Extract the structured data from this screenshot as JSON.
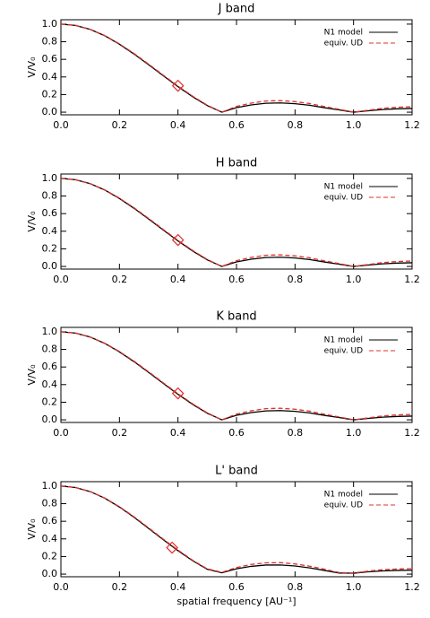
{
  "chart_data": [
    {
      "type": "line",
      "title": "J band",
      "ylabel": "V/V₀",
      "x": [
        0,
        0.05,
        0.1,
        0.15,
        0.2,
        0.25,
        0.3,
        0.35,
        0.4,
        0.45,
        0.5,
        0.55,
        0.6,
        0.65,
        0.7,
        0.75,
        0.8,
        0.85,
        0.9,
        0.95,
        1.0,
        1.05,
        1.1,
        1.15,
        1.2
      ],
      "series": [
        {
          "name": "N1 model",
          "color": "#000000",
          "style": "solid",
          "values": [
            1,
            0.985,
            0.94,
            0.868,
            0.772,
            0.66,
            0.538,
            0.413,
            0.29,
            0.176,
            0.075,
            0,
            0.052,
            0.082,
            0.101,
            0.105,
            0.096,
            0.078,
            0.051,
            0.026,
            0,
            0.016,
            0.03,
            0.038,
            0.042
          ]
        },
        {
          "name": "equiv. UD",
          "color": "#e0302c",
          "style": "dashed",
          "values": [
            1,
            0.985,
            0.94,
            0.87,
            0.776,
            0.666,
            0.545,
            0.42,
            0.297,
            0.182,
            0.08,
            0,
            0.066,
            0.102,
            0.127,
            0.131,
            0.12,
            0.098,
            0.064,
            0.033,
            0,
            0.022,
            0.044,
            0.056,
            0.062
          ]
        }
      ],
      "marker": {
        "x": 0.4,
        "y": 0.3,
        "color": "#e0302c"
      },
      "xlim": [
        0,
        1.2
      ],
      "ylim": [
        -0.03,
        1.05
      ],
      "xticks": [
        {
          "value": 0,
          "label": "0.0"
        },
        {
          "value": 0.2,
          "label": "0.2"
        },
        {
          "value": 0.4,
          "label": "0.4"
        },
        {
          "value": 0.6,
          "label": "0.6"
        },
        {
          "value": 0.8,
          "label": "0.8"
        },
        {
          "value": 1,
          "label": "1.0"
        },
        {
          "value": 1.2,
          "label": "1.2"
        }
      ],
      "yticks": [
        {
          "value": 0,
          "label": "0.0"
        },
        {
          "value": 0.2,
          "label": "0.2"
        },
        {
          "value": 0.4,
          "label": "0.4"
        },
        {
          "value": 0.6,
          "label": "0.6"
        },
        {
          "value": 0.8,
          "label": "0.8"
        },
        {
          "value": 1,
          "label": "1.0"
        }
      ],
      "legend": "upper right"
    },
    {
      "type": "line",
      "title": "H band",
      "ylabel": "V/V₀",
      "x": [
        0,
        0.05,
        0.1,
        0.15,
        0.2,
        0.25,
        0.3,
        0.35,
        0.4,
        0.45,
        0.5,
        0.55,
        0.6,
        0.65,
        0.7,
        0.75,
        0.8,
        0.85,
        0.9,
        0.95,
        1.0,
        1.05,
        1.1,
        1.15,
        1.2
      ],
      "series": [
        {
          "name": "N1 model",
          "color": "#000000",
          "style": "solid",
          "values": [
            1,
            0.985,
            0.94,
            0.868,
            0.772,
            0.66,
            0.538,
            0.413,
            0.29,
            0.176,
            0.075,
            0,
            0.052,
            0.082,
            0.101,
            0.105,
            0.096,
            0.078,
            0.051,
            0.026,
            0,
            0.016,
            0.03,
            0.038,
            0.042
          ]
        },
        {
          "name": "equiv. UD",
          "color": "#e0302c",
          "style": "dashed",
          "values": [
            1,
            0.985,
            0.94,
            0.87,
            0.776,
            0.666,
            0.545,
            0.42,
            0.297,
            0.182,
            0.08,
            0,
            0.066,
            0.102,
            0.127,
            0.131,
            0.12,
            0.098,
            0.064,
            0.033,
            0,
            0.022,
            0.044,
            0.056,
            0.062
          ]
        }
      ],
      "marker": {
        "x": 0.4,
        "y": 0.3,
        "color": "#e0302c"
      },
      "xlim": [
        0,
        1.2
      ],
      "ylim": [
        -0.03,
        1.05
      ],
      "xticks": [
        {
          "value": 0,
          "label": "0.0"
        },
        {
          "value": 0.2,
          "label": "0.2"
        },
        {
          "value": 0.4,
          "label": "0.4"
        },
        {
          "value": 0.6,
          "label": "0.6"
        },
        {
          "value": 0.8,
          "label": "0.8"
        },
        {
          "value": 1,
          "label": "1.0"
        },
        {
          "value": 1.2,
          "label": "1.2"
        }
      ],
      "yticks": [
        {
          "value": 0,
          "label": "0.0"
        },
        {
          "value": 0.2,
          "label": "0.2"
        },
        {
          "value": 0.4,
          "label": "0.4"
        },
        {
          "value": 0.6,
          "label": "0.6"
        },
        {
          "value": 0.8,
          "label": "0.8"
        },
        {
          "value": 1,
          "label": "1.0"
        }
      ],
      "legend": "upper right"
    },
    {
      "type": "line",
      "title": "K band",
      "ylabel": "V/V₀",
      "x": [
        0,
        0.05,
        0.1,
        0.15,
        0.2,
        0.25,
        0.3,
        0.35,
        0.4,
        0.45,
        0.5,
        0.55,
        0.6,
        0.65,
        0.7,
        0.75,
        0.8,
        0.85,
        0.9,
        0.95,
        1.0,
        1.05,
        1.1,
        1.15,
        1.2
      ],
      "series": [
        {
          "name": "N1 model",
          "color": "#000000",
          "style": "solid",
          "values": [
            1,
            0.985,
            0.94,
            0.868,
            0.772,
            0.66,
            0.538,
            0.413,
            0.29,
            0.176,
            0.075,
            0,
            0.052,
            0.082,
            0.101,
            0.105,
            0.096,
            0.078,
            0.051,
            0.026,
            0,
            0.016,
            0.03,
            0.038,
            0.042
          ]
        },
        {
          "name": "equiv. UD",
          "color": "#e0302c",
          "style": "dashed",
          "values": [
            1,
            0.985,
            0.94,
            0.87,
            0.776,
            0.666,
            0.545,
            0.42,
            0.297,
            0.182,
            0.08,
            0,
            0.066,
            0.102,
            0.127,
            0.131,
            0.12,
            0.098,
            0.064,
            0.033,
            0,
            0.022,
            0.044,
            0.056,
            0.062
          ]
        }
      ],
      "marker": {
        "x": 0.4,
        "y": 0.3,
        "color": "#e0302c"
      },
      "xlim": [
        0,
        1.2
      ],
      "ylim": [
        -0.03,
        1.05
      ],
      "xticks": [
        {
          "value": 0,
          "label": "0.0"
        },
        {
          "value": 0.2,
          "label": "0.2"
        },
        {
          "value": 0.4,
          "label": "0.4"
        },
        {
          "value": 0.6,
          "label": "0.6"
        },
        {
          "value": 0.8,
          "label": "0.8"
        },
        {
          "value": 1,
          "label": "1.0"
        },
        {
          "value": 1.2,
          "label": "1.2"
        }
      ],
      "yticks": [
        {
          "value": 0,
          "label": "0.0"
        },
        {
          "value": 0.2,
          "label": "0.2"
        },
        {
          "value": 0.4,
          "label": "0.4"
        },
        {
          "value": 0.6,
          "label": "0.6"
        },
        {
          "value": 0.8,
          "label": "0.8"
        },
        {
          "value": 1,
          "label": "1.0"
        }
      ],
      "legend": "upper right"
    },
    {
      "type": "line",
      "title": "L' band",
      "ylabel": "V/V₀",
      "xlabel": "spatial frequency [AU⁻¹]",
      "x": [
        0,
        0.05,
        0.1,
        0.15,
        0.2,
        0.25,
        0.3,
        0.35,
        0.4,
        0.45,
        0.5,
        0.55,
        0.6,
        0.65,
        0.7,
        0.75,
        0.8,
        0.85,
        0.9,
        0.95,
        1.0,
        1.05,
        1.1,
        1.15,
        1.2
      ],
      "series": [
        {
          "name": "N1 model",
          "color": "#000000",
          "style": "solid",
          "values": [
            1,
            0.984,
            0.937,
            0.862,
            0.762,
            0.645,
            0.518,
            0.39,
            0.266,
            0.152,
            0.055,
            0.015,
            0.06,
            0.088,
            0.103,
            0.104,
            0.092,
            0.071,
            0.042,
            0.012,
            0.01,
            0.026,
            0.036,
            0.042,
            0.044
          ]
        },
        {
          "name": "equiv. UD",
          "color": "#e0302c",
          "style": "dashed",
          "values": [
            1,
            0.984,
            0.938,
            0.864,
            0.766,
            0.651,
            0.525,
            0.397,
            0.273,
            0.158,
            0.06,
            0.02,
            0.075,
            0.11,
            0.128,
            0.13,
            0.116,
            0.09,
            0.056,
            0.018,
            0.012,
            0.034,
            0.05,
            0.058,
            0.062
          ]
        }
      ],
      "marker": {
        "x": 0.38,
        "y": 0.3,
        "color": "#e0302c"
      },
      "xlim": [
        0,
        1.2
      ],
      "ylim": [
        -0.03,
        1.05
      ],
      "xticks": [
        {
          "value": 0,
          "label": "0.0"
        },
        {
          "value": 0.2,
          "label": "0.2"
        },
        {
          "value": 0.4,
          "label": "0.4"
        },
        {
          "value": 0.6,
          "label": "0.6"
        },
        {
          "value": 0.8,
          "label": "0.8"
        },
        {
          "value": 1,
          "label": "1.0"
        },
        {
          "value": 1.2,
          "label": "1.2"
        }
      ],
      "yticks": [
        {
          "value": 0,
          "label": "0.0"
        },
        {
          "value": 0.2,
          "label": "0.2"
        },
        {
          "value": 0.4,
          "label": "0.4"
        },
        {
          "value": 0.6,
          "label": "0.6"
        },
        {
          "value": 0.8,
          "label": "0.8"
        },
        {
          "value": 1,
          "label": "1.0"
        }
      ],
      "legend": "upper right"
    }
  ]
}
